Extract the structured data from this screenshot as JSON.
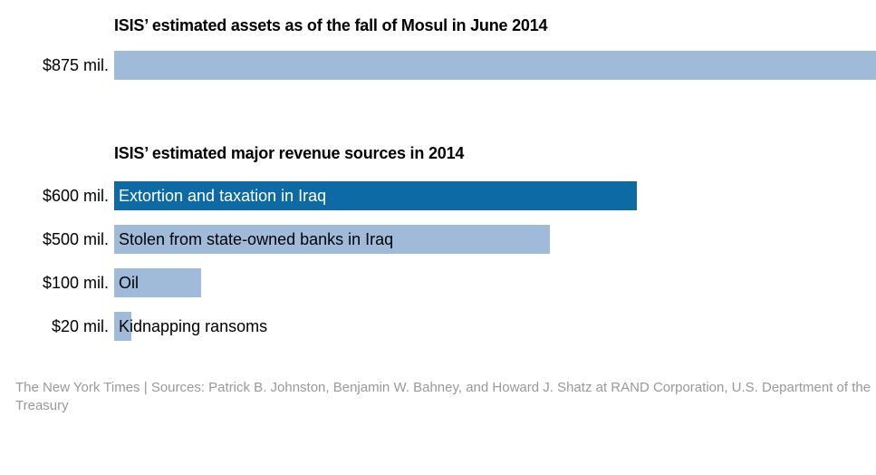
{
  "footer": {
    "credit": "The New York Times",
    "separator": "|",
    "sources": "Sources: Patrick B. Johnston, Benjamin W. Bahney, and Howard J. Shatz at RAND Corporation, U.S. Department of the Treasury"
  },
  "chart_data": [
    {
      "type": "bar",
      "orientation": "horizontal",
      "title": "ISIS’ estimated assets as of the fall of Mosul in June 2014",
      "unit": "mil.",
      "categories": [
        ""
      ],
      "value_labels": [
        "$875 mil."
      ],
      "values": [
        875
      ],
      "xlim": [
        0,
        875
      ],
      "colors": [
        "#a0bbd9"
      ]
    },
    {
      "type": "bar",
      "orientation": "horizontal",
      "title": "ISIS’ estimated major revenue sources in 2014",
      "unit": "mil.",
      "categories": [
        "Extortion and taxation in Iraq",
        "Stolen from state-owned banks in Iraq",
        "Oil",
        "Kidnapping ransoms"
      ],
      "value_labels": [
        "$600 mil.",
        "$500 mil.",
        "$100 mil.",
        "$20 mil."
      ],
      "values": [
        600,
        500,
        100,
        20
      ],
      "xlim": [
        0,
        875
      ],
      "colors": [
        "#0d6aa4",
        "#a0bbd9",
        "#a0bbd9",
        "#a0bbd9"
      ],
      "label_colors": [
        "#ffffff",
        "#000000",
        "#000000",
        "#000000"
      ]
    }
  ]
}
